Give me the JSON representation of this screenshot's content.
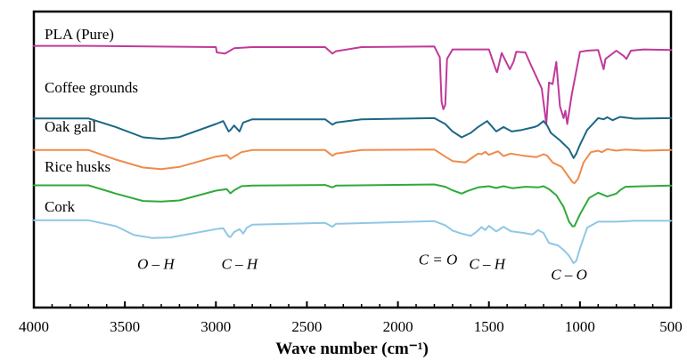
{
  "chart_data": {
    "type": "line",
    "xlabel": "Wave number (cm⁻¹)",
    "xlim": [
      4000,
      500
    ],
    "xreversed": true,
    "x_ticks": [
      4000,
      3500,
      3000,
      2500,
      2000,
      1500,
      1000,
      500
    ],
    "x_tick_labels": [
      "4000",
      "3500",
      "3000",
      "2500",
      "2000",
      "1500",
      "1000",
      "500"
    ],
    "ylim": [
      0,
      100
    ],
    "y_axis_ticks": false,
    "grid": false,
    "legend": "none",
    "stacked_offset": true,
    "series": [
      {
        "name": "PLA (Pure)",
        "color": "#c0399a",
        "baseline": 88,
        "points": [
          [
            4000,
            88.4
          ],
          [
            3700,
            88.4
          ],
          [
            3500,
            88.3
          ],
          [
            3000,
            88.0
          ],
          [
            2995,
            86.2
          ],
          [
            2950,
            85.8
          ],
          [
            2900,
            87.6
          ],
          [
            2800,
            88.0
          ],
          [
            2400,
            88.0
          ],
          [
            2360,
            85.8
          ],
          [
            2340,
            86.6
          ],
          [
            2200,
            88.0
          ],
          [
            1800,
            88.2
          ],
          [
            1770,
            84.5
          ],
          [
            1760,
            69.5
          ],
          [
            1750,
            67.0
          ],
          [
            1740,
            68.5
          ],
          [
            1730,
            84.0
          ],
          [
            1700,
            87.2
          ],
          [
            1500,
            87.2
          ],
          [
            1460,
            80.0
          ],
          [
            1455,
            79.5
          ],
          [
            1430,
            86.0
          ],
          [
            1385,
            80.5
          ],
          [
            1365,
            83.0
          ],
          [
            1350,
            86.4
          ],
          [
            1300,
            86.2
          ],
          [
            1270,
            82.0
          ],
          [
            1210,
            74.0
          ],
          [
            1185,
            62.0
          ],
          [
            1170,
            76.0
          ],
          [
            1150,
            75.5
          ],
          [
            1130,
            83.0
          ],
          [
            1110,
            68.0
          ],
          [
            1090,
            64.0
          ],
          [
            1080,
            66.5
          ],
          [
            1070,
            62.0
          ],
          [
            1045,
            72.0
          ],
          [
            1000,
            86.4
          ],
          [
            960,
            86.8
          ],
          [
            900,
            87.0
          ],
          [
            870,
            80.5
          ],
          [
            860,
            84.0
          ],
          [
            800,
            86.8
          ],
          [
            760,
            85.0
          ],
          [
            745,
            84.0
          ],
          [
            720,
            86.8
          ],
          [
            650,
            87.2
          ],
          [
            500,
            87.0
          ]
        ]
      },
      {
        "name": "Coffee grounds",
        "color": "#1c6787",
        "baseline": 64,
        "points": [
          [
            4000,
            63.9
          ],
          [
            3700,
            63.9
          ],
          [
            3550,
            61.0
          ],
          [
            3400,
            57.5
          ],
          [
            3300,
            57.0
          ],
          [
            3200,
            57.6
          ],
          [
            3000,
            62.0
          ],
          [
            2960,
            63.0
          ],
          [
            2930,
            59.5
          ],
          [
            2920,
            60.0
          ],
          [
            2900,
            61.5
          ],
          [
            2870,
            59.5
          ],
          [
            2850,
            62.5
          ],
          [
            2800,
            63.6
          ],
          [
            2400,
            63.6
          ],
          [
            2360,
            61.8
          ],
          [
            2340,
            62.5
          ],
          [
            2200,
            63.6
          ],
          [
            1800,
            64.0
          ],
          [
            1740,
            62.0
          ],
          [
            1700,
            59.5
          ],
          [
            1650,
            57.5
          ],
          [
            1600,
            59.0
          ],
          [
            1560,
            61.0
          ],
          [
            1510,
            63.0
          ],
          [
            1460,
            59.5
          ],
          [
            1420,
            61.0
          ],
          [
            1375,
            59.5
          ],
          [
            1320,
            60.0
          ],
          [
            1250,
            61.0
          ],
          [
            1230,
            61.5
          ],
          [
            1200,
            63.0
          ],
          [
            1180,
            61.5
          ],
          [
            1160,
            59.0
          ],
          [
            1110,
            56.5
          ],
          [
            1060,
            53.5
          ],
          [
            1035,
            50.5
          ],
          [
            1020,
            52.0
          ],
          [
            1000,
            55.0
          ],
          [
            960,
            60.0
          ],
          [
            900,
            64.0
          ],
          [
            870,
            63.6
          ],
          [
            850,
            64.3
          ],
          [
            820,
            63.3
          ],
          [
            780,
            64.4
          ],
          [
            700,
            63.8
          ],
          [
            500,
            64.0
          ]
        ]
      },
      {
        "name": "Oak gall",
        "color": "#f08a4b",
        "baseline": 53,
        "points": [
          [
            4000,
            53.2
          ],
          [
            3700,
            53.2
          ],
          [
            3550,
            50.0
          ],
          [
            3400,
            47.3
          ],
          [
            3300,
            46.8
          ],
          [
            3200,
            47.5
          ],
          [
            3000,
            51.0
          ],
          [
            2940,
            51.5
          ],
          [
            2920,
            50.2
          ],
          [
            2900,
            51.0
          ],
          [
            2860,
            52.5
          ],
          [
            2800,
            53.2
          ],
          [
            2400,
            53.2
          ],
          [
            2360,
            51.3
          ],
          [
            2340,
            52.0
          ],
          [
            2200,
            53.2
          ],
          [
            1800,
            53.4
          ],
          [
            1740,
            51.0
          ],
          [
            1700,
            49.5
          ],
          [
            1630,
            49.0
          ],
          [
            1600,
            50.3
          ],
          [
            1560,
            52.0
          ],
          [
            1540,
            51.8
          ],
          [
            1520,
            52.6
          ],
          [
            1500,
            51.6
          ],
          [
            1450,
            52.8
          ],
          [
            1420,
            51.2
          ],
          [
            1380,
            52.0
          ],
          [
            1310,
            51.3
          ],
          [
            1240,
            50.8
          ],
          [
            1200,
            51.8
          ],
          [
            1180,
            51.3
          ],
          [
            1150,
            49.0
          ],
          [
            1100,
            47.5
          ],
          [
            1060,
            44.0
          ],
          [
            1040,
            42.3
          ],
          [
            1030,
            42.0
          ],
          [
            1010,
            43.5
          ],
          [
            980,
            49.0
          ],
          [
            940,
            52.5
          ],
          [
            900,
            53.0
          ],
          [
            880,
            52.5
          ],
          [
            850,
            53.5
          ],
          [
            800,
            53.0
          ],
          [
            750,
            53.4
          ],
          [
            650,
            53.0
          ],
          [
            500,
            53.2
          ]
        ]
      },
      {
        "name": "Rice husks",
        "color": "#2eaa3a",
        "baseline": 41,
        "points": [
          [
            4000,
            41.3
          ],
          [
            3700,
            41.3
          ],
          [
            3550,
            38.5
          ],
          [
            3400,
            36.0
          ],
          [
            3300,
            35.8
          ],
          [
            3200,
            36.2
          ],
          [
            3000,
            39.5
          ],
          [
            2940,
            40.0
          ],
          [
            2920,
            38.6
          ],
          [
            2900,
            39.6
          ],
          [
            2860,
            41.0
          ],
          [
            2800,
            41.2
          ],
          [
            2400,
            41.4
          ],
          [
            2360,
            40.6
          ],
          [
            2340,
            41.2
          ],
          [
            1800,
            41.6
          ],
          [
            1740,
            40.8
          ],
          [
            1700,
            39.6
          ],
          [
            1650,
            38.5
          ],
          [
            1620,
            39.3
          ],
          [
            1560,
            40.6
          ],
          [
            1500,
            41.0
          ],
          [
            1460,
            40.4
          ],
          [
            1420,
            41.0
          ],
          [
            1370,
            40.3
          ],
          [
            1300,
            40.8
          ],
          [
            1230,
            40.6
          ],
          [
            1200,
            41.0
          ],
          [
            1170,
            40.0
          ],
          [
            1130,
            38.0
          ],
          [
            1090,
            34.0
          ],
          [
            1060,
            29.0
          ],
          [
            1040,
            27.4
          ],
          [
            1030,
            27.5
          ],
          [
            1000,
            31.5
          ],
          [
            950,
            37.0
          ],
          [
            900,
            38.8
          ],
          [
            850,
            37.5
          ],
          [
            800,
            38.5
          ],
          [
            780,
            39.6
          ],
          [
            750,
            40.8
          ],
          [
            650,
            41.0
          ],
          [
            500,
            41.2
          ]
        ]
      },
      {
        "name": "Cork",
        "color": "#8fc7e6",
        "baseline": 29,
        "points": [
          [
            4000,
            29.5
          ],
          [
            3700,
            29.5
          ],
          [
            3550,
            27.5
          ],
          [
            3450,
            24.5
          ],
          [
            3350,
            23.5
          ],
          [
            3250,
            23.7
          ],
          [
            3000,
            26.5
          ],
          [
            2960,
            26.8
          ],
          [
            2930,
            24.0
          ],
          [
            2920,
            23.8
          ],
          [
            2900,
            25.5
          ],
          [
            2870,
            26.5
          ],
          [
            2850,
            25.0
          ],
          [
            2830,
            27.0
          ],
          [
            2800,
            28.0
          ],
          [
            2400,
            28.6
          ],
          [
            2360,
            27.3
          ],
          [
            2340,
            28.3
          ],
          [
            1800,
            29.2
          ],
          [
            1740,
            27.8
          ],
          [
            1700,
            26.0
          ],
          [
            1650,
            25.0
          ],
          [
            1600,
            24.2
          ],
          [
            1570,
            25.5
          ],
          [
            1540,
            27.2
          ],
          [
            1520,
            26.2
          ],
          [
            1500,
            27.6
          ],
          [
            1460,
            25.7
          ],
          [
            1420,
            27.3
          ],
          [
            1380,
            25.8
          ],
          [
            1320,
            25.3
          ],
          [
            1260,
            24.7
          ],
          [
            1230,
            26.2
          ],
          [
            1200,
            25.2
          ],
          [
            1170,
            21.8
          ],
          [
            1120,
            21.0
          ],
          [
            1090,
            19.5
          ],
          [
            1060,
            17.5
          ],
          [
            1035,
            15.0
          ],
          [
            1020,
            15.8
          ],
          [
            1000,
            20.0
          ],
          [
            960,
            27.0
          ],
          [
            900,
            29.0
          ],
          [
            800,
            29.0
          ],
          [
            700,
            29.3
          ],
          [
            500,
            29.3
          ]
        ]
      }
    ],
    "series_labels": [
      "PLA (Pure)",
      "Coffee grounds",
      "Oak gall",
      "Rice husks",
      "Cork"
    ],
    "annotations": [
      {
        "text": "O – H",
        "x": 3330,
        "y": 13
      },
      {
        "text": "C – H",
        "x": 2870,
        "y": 13
      },
      {
        "text": "C = O",
        "x": 1780,
        "y": 14.5
      },
      {
        "text": "C – H",
        "x": 1510,
        "y": 13
      },
      {
        "text": "C – O",
        "x": 1060,
        "y": 9.5
      }
    ]
  }
}
